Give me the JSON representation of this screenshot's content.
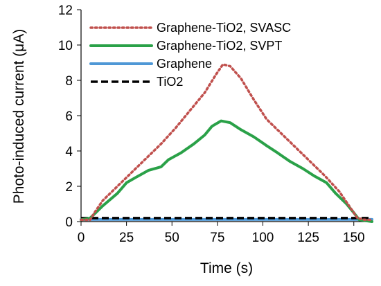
{
  "chart_data": {
    "type": "line",
    "xlabel": "Time (s)",
    "ylabel": "Photo-induced current (μA)",
    "xlim": [
      0,
      160
    ],
    "ylim": [
      0,
      12
    ],
    "xticks": [
      0,
      25,
      50,
      75,
      100,
      125,
      150
    ],
    "yticks": [
      0,
      2,
      4,
      6,
      8,
      10,
      12
    ],
    "grid": false,
    "legend_position": "top-left",
    "series": [
      {
        "name": "Graphene-TiO2, SVASC",
        "color": "#c0504d",
        "style": "dotted",
        "x": [
          0,
          5,
          8,
          12,
          20,
          28,
          36,
          44,
          52,
          60,
          68,
          74,
          78,
          82,
          88,
          95,
          102,
          110,
          118,
          126,
          134,
          142,
          148,
          152,
          156,
          160
        ],
        "y": [
          0.1,
          0.1,
          0.6,
          1.2,
          2.0,
          2.8,
          3.6,
          4.4,
          5.3,
          6.3,
          7.3,
          8.3,
          8.9,
          8.8,
          8.1,
          6.9,
          5.8,
          5.0,
          4.2,
          3.4,
          2.6,
          1.7,
          0.8,
          0.2,
          0.1,
          0.1
        ]
      },
      {
        "name": "Graphene-TiO2, SVPT",
        "color": "#2aa148",
        "style": "solid",
        "x": [
          0,
          5,
          8,
          12,
          20,
          25,
          30,
          37,
          44,
          48,
          55,
          62,
          68,
          72,
          77,
          82,
          88,
          95,
          102,
          108,
          115,
          122,
          128,
          135,
          140,
          146,
          150,
          153,
          160
        ],
        "y": [
          0.1,
          0.2,
          0.5,
          0.9,
          1.6,
          2.2,
          2.5,
          2.9,
          3.1,
          3.5,
          3.9,
          4.4,
          4.9,
          5.4,
          5.7,
          5.6,
          5.2,
          4.8,
          4.3,
          3.9,
          3.4,
          3.0,
          2.6,
          2.2,
          1.6,
          1.0,
          0.5,
          0.1,
          0.0
        ]
      },
      {
        "name": "Graphene",
        "color": "#4f98d6",
        "style": "solid",
        "x": [
          0,
          160
        ],
        "y": [
          0.12,
          0.12
        ]
      },
      {
        "name": "TiO2",
        "color": "#000000",
        "style": "dashed",
        "x": [
          0,
          160
        ],
        "y": [
          0.2,
          0.2
        ]
      }
    ]
  }
}
